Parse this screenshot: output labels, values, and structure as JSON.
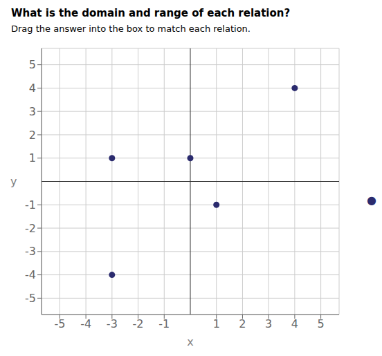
{
  "chart_data": {
    "type": "scatter",
    "title": "What is the domain and range of each relation?",
    "subtitle": "Drag the answer into the box to match each relation.",
    "x": [
      -3,
      0,
      1,
      4,
      -3
    ],
    "values": [
      1,
      1,
      -1,
      4,
      -4
    ],
    "color": "#2b2b6e",
    "xlim": [
      -5.7,
      5.7
    ],
    "ylim": [
      -5.7,
      5.7
    ],
    "xticks": [
      -5,
      -4,
      -3,
      -2,
      -1,
      1,
      2,
      3,
      4,
      5
    ],
    "yticks": [
      -5,
      -4,
      -3,
      -2,
      -1,
      1,
      2,
      3,
      4,
      5
    ],
    "xlabel": "x",
    "ylabel": "y",
    "grid": true,
    "annotations": [
      "●"
    ]
  }
}
